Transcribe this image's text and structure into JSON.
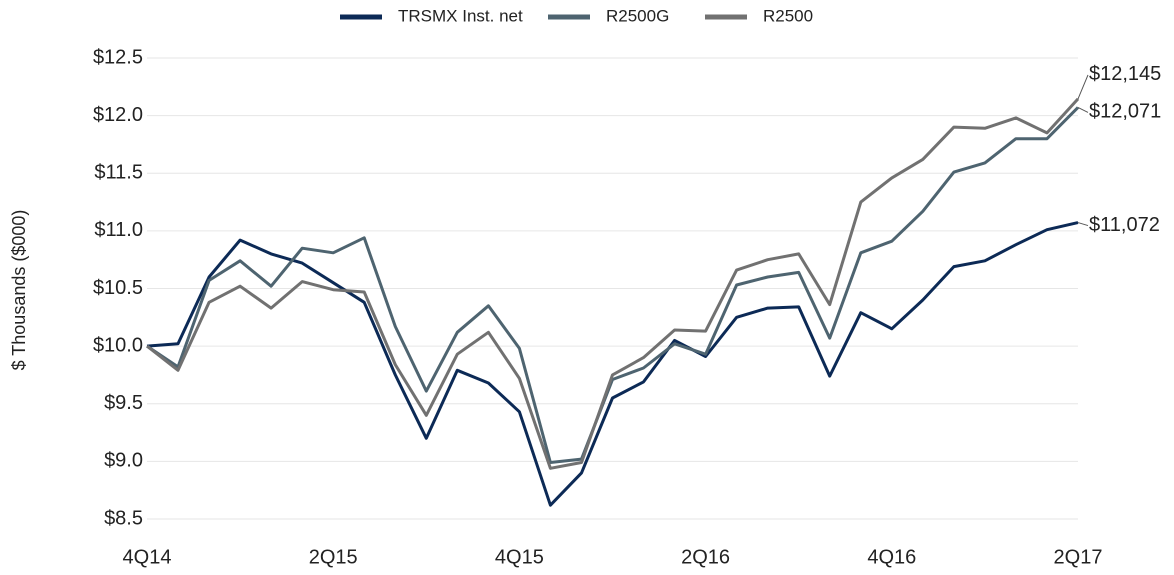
{
  "chart_data": {
    "type": "line",
    "y_label": "$ Thousands ($000)",
    "categories": [
      "4Q14",
      null,
      null,
      null,
      null,
      null,
      "2Q15",
      null,
      null,
      null,
      null,
      null,
      "4Q15",
      null,
      null,
      null,
      null,
      null,
      "2Q16",
      null,
      null,
      null,
      null,
      null,
      "4Q16",
      null,
      null,
      null,
      null,
      null,
      "2Q17"
    ],
    "series": [
      {
        "name": "TRSMX Inst. net",
        "color": "#0c2a56",
        "values": [
          10.0,
          10.02,
          10.6,
          10.92,
          10.8,
          10.72,
          10.55,
          10.38,
          9.75,
          9.2,
          9.79,
          9.68,
          9.43,
          8.62,
          8.9,
          9.55,
          9.69,
          10.05,
          9.91,
          10.25,
          10.33,
          10.34,
          9.74,
          10.29,
          10.15,
          10.4,
          10.69,
          10.74,
          10.88,
          11.01,
          11.072
        ],
        "value_labels": [
          null,
          null,
          null,
          null,
          null,
          null,
          null,
          null,
          null,
          null,
          null,
          null,
          null,
          null,
          null,
          null,
          null,
          null,
          null,
          null,
          null,
          null,
          null,
          null,
          null,
          null,
          null,
          null,
          null,
          null,
          "$11,072"
        ]
      },
      {
        "name": "R2500G",
        "color": "#4e6470",
        "values": [
          10.0,
          9.82,
          10.57,
          10.74,
          10.52,
          10.85,
          10.81,
          10.94,
          10.17,
          9.61,
          10.12,
          10.35,
          9.98,
          8.99,
          9.02,
          9.71,
          9.81,
          10.02,
          9.93,
          10.53,
          10.6,
          10.64,
          10.07,
          10.81,
          10.91,
          11.17,
          11.51,
          11.59,
          11.8,
          11.8,
          12.071
        ],
        "value_labels": [
          null,
          null,
          null,
          null,
          null,
          null,
          null,
          null,
          null,
          null,
          null,
          null,
          null,
          null,
          null,
          null,
          null,
          null,
          null,
          null,
          null,
          null,
          null,
          null,
          null,
          null,
          null,
          null,
          null,
          null,
          "$12,071"
        ]
      },
      {
        "name": "R2500",
        "color": "#717171",
        "values": [
          10.0,
          9.79,
          10.38,
          10.52,
          10.33,
          10.56,
          10.49,
          10.47,
          9.84,
          9.4,
          9.93,
          10.12,
          9.72,
          8.94,
          8.99,
          9.75,
          9.9,
          10.14,
          10.13,
          10.66,
          10.75,
          10.8,
          10.36,
          11.25,
          11.46,
          11.62,
          11.9,
          11.89,
          11.98,
          11.85,
          12.145
        ],
        "value_labels": [
          null,
          null,
          null,
          null,
          null,
          null,
          null,
          null,
          null,
          null,
          null,
          null,
          null,
          null,
          null,
          null,
          null,
          null,
          null,
          null,
          null,
          null,
          null,
          null,
          null,
          null,
          null,
          null,
          null,
          null,
          "$12,145"
        ]
      }
    ],
    "ylim": [
      8.5,
      12.5
    ],
    "yticks": [
      {
        "value": 8.5,
        "label": "$8.5"
      },
      {
        "value": 9.0,
        "label": "$9.0"
      },
      {
        "value": 9.5,
        "label": "$9.5"
      },
      {
        "value": 10.0,
        "label": "$10.0"
      },
      {
        "value": 10.5,
        "label": "$10.5"
      },
      {
        "value": 11.0,
        "label": "$11.0"
      },
      {
        "value": 11.5,
        "label": "$11.5"
      },
      {
        "value": 12.0,
        "label": "$12.0"
      },
      {
        "value": 12.5,
        "label": "$12.5"
      }
    ],
    "grid": true,
    "legend": "top"
  }
}
